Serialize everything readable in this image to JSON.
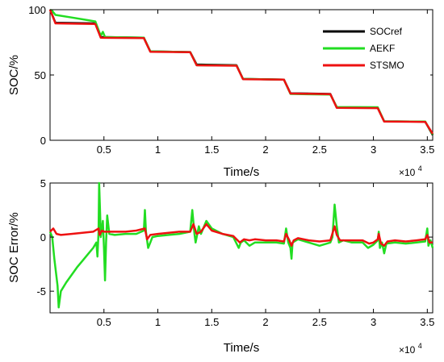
{
  "chart_data": [
    {
      "type": "line",
      "ylabel": "SOC/%",
      "xlabel": "Time/s",
      "x_exponent_base": "×10",
      "x_exponent_power": "4",
      "xlim": [
        0,
        35500
      ],
      "ylim": [
        0,
        100
      ],
      "xticks": [
        5000,
        10000,
        15000,
        20000,
        25000,
        30000,
        35000
      ],
      "xtick_labels": [
        "0.5",
        "1",
        "1.5",
        "2",
        "2.5",
        "3",
        "3.5"
      ],
      "yticks": [
        0,
        50,
        100
      ],
      "ytick_labels": [
        "0",
        "50",
        "100"
      ],
      "legend_position": "top-right",
      "grid": false,
      "series": [
        {
          "name": "SOCref",
          "color": "#000000",
          "points": [
            [
              0,
              100
            ],
            [
              500,
              90
            ],
            [
              4200,
              89.5
            ],
            [
              4700,
              79
            ],
            [
              8700,
              78.5
            ],
            [
              9300,
              68
            ],
            [
              13000,
              67.5
            ],
            [
              13600,
              58
            ],
            [
              17300,
              57.5
            ],
            [
              17900,
              47
            ],
            [
              21700,
              46.5
            ],
            [
              22300,
              36
            ],
            [
              26000,
              35.5
            ],
            [
              26600,
              25
            ],
            [
              30400,
              24.8
            ],
            [
              31000,
              14.5
            ],
            [
              34800,
              14.3
            ],
            [
              35500,
              4
            ]
          ]
        },
        {
          "name": "AEKF",
          "color": "#22dd22",
          "points": [
            [
              0,
              100
            ],
            [
              200,
              99
            ],
            [
              500,
              96
            ],
            [
              2000,
              94
            ],
            [
              3500,
              92
            ],
            [
              4200,
              91
            ],
            [
              4700,
              80
            ],
            [
              4900,
              83
            ],
            [
              5100,
              79
            ],
            [
              8700,
              78.5
            ],
            [
              9300,
              68
            ],
            [
              13000,
              67.5
            ],
            [
              13600,
              57.5
            ],
            [
              17300,
              57.2
            ],
            [
              17900,
              47
            ],
            [
              21700,
              46.5
            ],
            [
              22300,
              35.5
            ],
            [
              26000,
              35
            ],
            [
              26600,
              25.5
            ],
            [
              30400,
              25.3
            ],
            [
              31000,
              14.5
            ],
            [
              34800,
              14.3
            ],
            [
              35500,
              4.5
            ]
          ]
        },
        {
          "name": "STSMO",
          "color": "#ee1111",
          "points": [
            [
              0,
              100
            ],
            [
              500,
              89.5
            ],
            [
              4200,
              89
            ],
            [
              4700,
              78.5
            ],
            [
              8700,
              78.2
            ],
            [
              9300,
              67.8
            ],
            [
              13000,
              67.4
            ],
            [
              13600,
              57.4
            ],
            [
              17300,
              57.1
            ],
            [
              17900,
              46.8
            ],
            [
              21700,
              46.4
            ],
            [
              22300,
              35.8
            ],
            [
              26000,
              35.4
            ],
            [
              26600,
              24.8
            ],
            [
              30400,
              24.6
            ],
            [
              31000,
              14.3
            ],
            [
              34800,
              14.1
            ],
            [
              35500,
              5
            ]
          ]
        }
      ]
    },
    {
      "type": "line",
      "ylabel": "SOC Error/%",
      "xlabel": "Time/s",
      "x_exponent_base": "×10",
      "x_exponent_power": "4",
      "xlim": [
        0,
        35500
      ],
      "ylim": [
        -7,
        5
      ],
      "xticks": [
        5000,
        10000,
        15000,
        20000,
        25000,
        30000,
        35000
      ],
      "xtick_labels": [
        "0.5",
        "1",
        "1.5",
        "2",
        "2.5",
        "3",
        "3.5"
      ],
      "yticks": [
        -5,
        0,
        5
      ],
      "ytick_labels": [
        "-5",
        "0",
        "5"
      ],
      "grid": false,
      "series": [
        {
          "name": "AEKF",
          "color": "#22dd22",
          "points": [
            [
              0,
              0.5
            ],
            [
              200,
              0
            ],
            [
              400,
              -2
            ],
            [
              700,
              -4.5
            ],
            [
              800,
              -6.5
            ],
            [
              1000,
              -5
            ],
            [
              1500,
              -4.2
            ],
            [
              2000,
              -3.5
            ],
            [
              2500,
              -2.8
            ],
            [
              3000,
              -2.2
            ],
            [
              3500,
              -1.6
            ],
            [
              4000,
              -1
            ],
            [
              4300,
              -0.5
            ],
            [
              4400,
              -1.8
            ],
            [
              4500,
              0.5
            ],
            [
              4550,
              5
            ],
            [
              4650,
              2
            ],
            [
              4700,
              0
            ],
            [
              4900,
              1.5
            ],
            [
              5000,
              -1
            ],
            [
              5100,
              -4
            ],
            [
              5200,
              -0.5
            ],
            [
              5300,
              2
            ],
            [
              5500,
              0.3
            ],
            [
              6000,
              0.2
            ],
            [
              7000,
              0.3
            ],
            [
              8000,
              0.3
            ],
            [
              8700,
              0.6
            ],
            [
              8800,
              2.5
            ],
            [
              8900,
              0.5
            ],
            [
              9100,
              -1
            ],
            [
              9300,
              -0.5
            ],
            [
              9500,
              0
            ],
            [
              10000,
              0.1
            ],
            [
              11000,
              0.2
            ],
            [
              12000,
              0.3
            ],
            [
              13000,
              0.5
            ],
            [
              13200,
              2.5
            ],
            [
              13400,
              0.3
            ],
            [
              13500,
              -0.5
            ],
            [
              13800,
              1
            ],
            [
              14000,
              0.3
            ],
            [
              14500,
              1.5
            ],
            [
              15000,
              0.8
            ],
            [
              16000,
              0.3
            ],
            [
              17000,
              0
            ],
            [
              17500,
              -1
            ],
            [
              17700,
              -0.5
            ],
            [
              18000,
              -0.3
            ],
            [
              18500,
              -0.8
            ],
            [
              19000,
              -0.5
            ],
            [
              20000,
              -0.5
            ],
            [
              21000,
              -0.5
            ],
            [
              21700,
              -0.6
            ],
            [
              21900,
              0.8
            ],
            [
              22100,
              -0.5
            ],
            [
              22300,
              -1
            ],
            [
              22400,
              -2
            ],
            [
              22500,
              -0.5
            ],
            [
              23000,
              -0.2
            ],
            [
              24000,
              -0.5
            ],
            [
              25000,
              -0.8
            ],
            [
              26000,
              -0.5
            ],
            [
              26200,
              0
            ],
            [
              26400,
              3
            ],
            [
              26600,
              1
            ],
            [
              26800,
              -0.5
            ],
            [
              27200,
              -0.3
            ],
            [
              28000,
              -0.5
            ],
            [
              29000,
              -0.5
            ],
            [
              29500,
              -1
            ],
            [
              30000,
              -0.7
            ],
            [
              30400,
              -0.3
            ],
            [
              30500,
              0.5
            ],
            [
              30600,
              -1
            ],
            [
              30800,
              -0.5
            ],
            [
              31000,
              -1.5
            ],
            [
              31200,
              -0.6
            ],
            [
              32000,
              -0.5
            ],
            [
              33000,
              -0.6
            ],
            [
              34000,
              -0.5
            ],
            [
              34800,
              -0.4
            ],
            [
              35000,
              0.8
            ],
            [
              35100,
              -0.8
            ],
            [
              35300,
              -0.3
            ],
            [
              35500,
              -1
            ]
          ]
        },
        {
          "name": "STSMO",
          "color": "#ee1111",
          "points": [
            [
              0,
              0.5
            ],
            [
              300,
              0.8
            ],
            [
              600,
              0.3
            ],
            [
              1000,
              0.2
            ],
            [
              2000,
              0.3
            ],
            [
              3000,
              0.4
            ],
            [
              4000,
              0.5
            ],
            [
              4500,
              0.8
            ],
            [
              4600,
              0.2
            ],
            [
              4800,
              0.6
            ],
            [
              5000,
              0.5
            ],
            [
              6000,
              0.5
            ],
            [
              7000,
              0.5
            ],
            [
              8000,
              0.6
            ],
            [
              8800,
              0.8
            ],
            [
              9000,
              -0.2
            ],
            [
              9300,
              0.2
            ],
            [
              10000,
              0.3
            ],
            [
              11000,
              0.4
            ],
            [
              12000,
              0.5
            ],
            [
              13000,
              0.5
            ],
            [
              13300,
              1.2
            ],
            [
              13600,
              0.3
            ],
            [
              14000,
              0.5
            ],
            [
              14500,
              1.2
            ],
            [
              15000,
              0.6
            ],
            [
              16000,
              0.3
            ],
            [
              17000,
              0.1
            ],
            [
              17600,
              -0.5
            ],
            [
              18000,
              -0.2
            ],
            [
              18500,
              -0.3
            ],
            [
              19000,
              -0.2
            ],
            [
              20000,
              -0.3
            ],
            [
              21000,
              -0.3
            ],
            [
              21700,
              -0.4
            ],
            [
              21900,
              0.3
            ],
            [
              22200,
              -0.3
            ],
            [
              22400,
              -0.8
            ],
            [
              22600,
              -0.3
            ],
            [
              23000,
              -0.1
            ],
            [
              24000,
              -0.3
            ],
            [
              25000,
              -0.4
            ],
            [
              26000,
              -0.3
            ],
            [
              26400,
              1
            ],
            [
              26600,
              0.2
            ],
            [
              26900,
              -0.3
            ],
            [
              28000,
              -0.3
            ],
            [
              29000,
              -0.3
            ],
            [
              29600,
              -0.6
            ],
            [
              30000,
              -0.5
            ],
            [
              30400,
              -0.2
            ],
            [
              30500,
              0.3
            ],
            [
              30700,
              -0.6
            ],
            [
              31000,
              -0.8
            ],
            [
              31300,
              -0.4
            ],
            [
              32000,
              -0.3
            ],
            [
              33000,
              -0.4
            ],
            [
              34000,
              -0.3
            ],
            [
              34800,
              -0.2
            ],
            [
              35000,
              0.2
            ],
            [
              35200,
              -0.5
            ],
            [
              35500,
              -0.5
            ]
          ]
        }
      ]
    }
  ]
}
